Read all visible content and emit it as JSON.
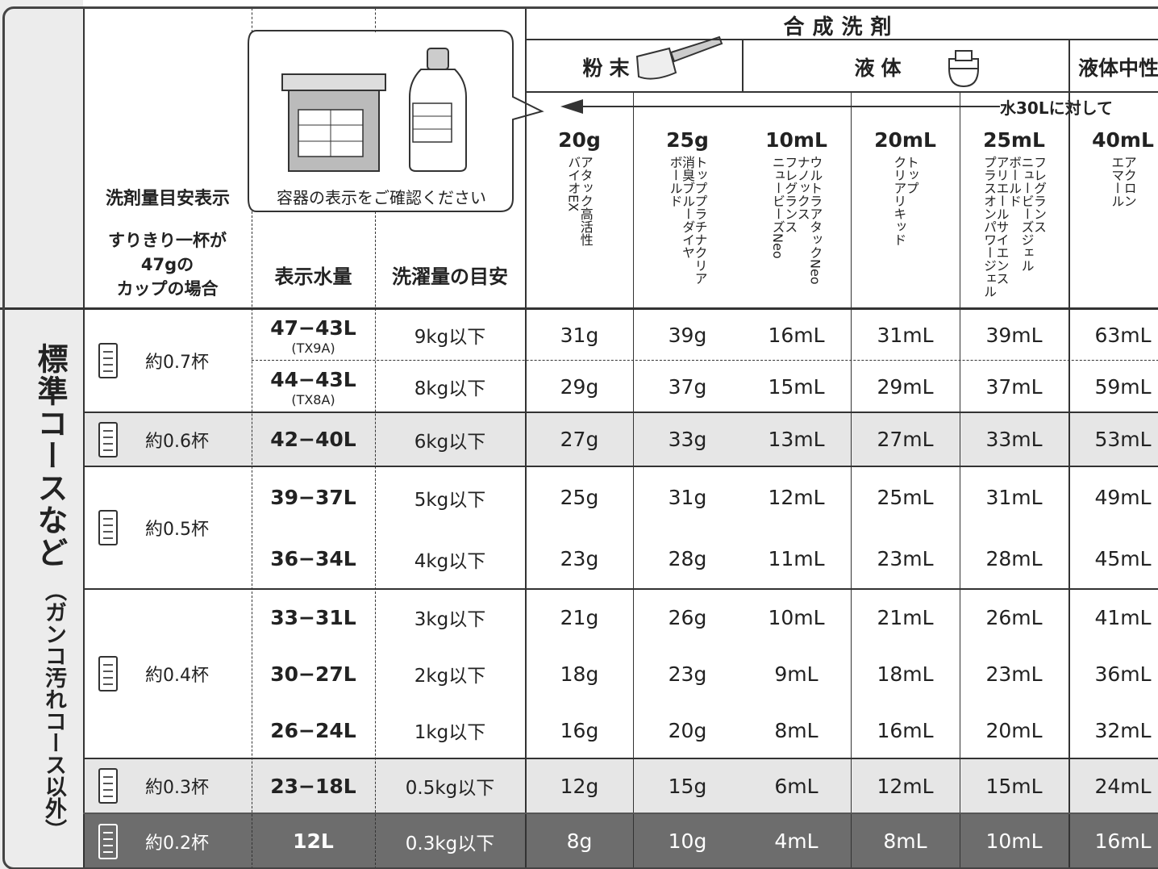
{
  "side": {
    "title": "標準コースなど",
    "sub": "（ガンコ汚れコース以外）"
  },
  "header": {
    "indicator": "洗剤量目安表示",
    "cup_note": [
      "すりきり一杯が",
      "47gの",
      "カップの場合"
    ],
    "container_note": "容器の表示をご確認ください",
    "water": "表示水量",
    "load": "洗濯量の目安",
    "detergent": "合成洗剤",
    "note": "水30Lに対して"
  },
  "groups": [
    "粉末",
    "液体",
    "液体中性"
  ],
  "columns": [
    {
      "amount": "20g",
      "products": [
        "アタック高活性",
        "バイオEX"
      ]
    },
    {
      "amount": "25g",
      "products": [
        "トッププラチナクリア",
        "消臭ブルーダイヤ",
        "ボールド"
      ]
    },
    {
      "amount": "10mL",
      "products": [
        "ウルトラアタックNeo",
        "ナノックス",
        "フレグランス",
        "ニュービーズNeo"
      ]
    },
    {
      "amount": "20mL",
      "products": [
        "トップ",
        "クリアリキッド"
      ]
    },
    {
      "amount": "25mL",
      "products": [
        "フレグランス",
        "ニュービーズジェル",
        "ボールド",
        "アリエールサイエンス",
        "プラスオンパワージェル"
      ]
    },
    {
      "amount": "40mL",
      "products": [
        "アクロン",
        "エマール"
      ]
    }
  ],
  "rows": [
    {
      "cup": "約0.7杯",
      "water": "47−43L",
      "model": "(TX9A)",
      "load": "9kg以下",
      "amounts": [
        "31g",
        "39g",
        "16mL",
        "31mL",
        "39mL",
        "63mL"
      ]
    },
    {
      "water": "44−43L",
      "model": "(TX8A)",
      "load": "8kg以下",
      "amounts": [
        "29g",
        "37g",
        "15mL",
        "29mL",
        "37mL",
        "59mL"
      ]
    },
    {
      "cup": "約0.6杯",
      "water": "42−40L",
      "load": "6kg以下",
      "amounts": [
        "27g",
        "33g",
        "13mL",
        "27mL",
        "33mL",
        "53mL"
      ]
    },
    {
      "cup": "約0.5杯",
      "water": "39−37L",
      "load": "5kg以下",
      "amounts": [
        "25g",
        "31g",
        "12mL",
        "25mL",
        "31mL",
        "49mL"
      ]
    },
    {
      "water": "36−34L",
      "load": "4kg以下",
      "amounts": [
        "23g",
        "28g",
        "11mL",
        "23mL",
        "28mL",
        "45mL"
      ]
    },
    {
      "cup": "約0.4杯",
      "water": "33−31L",
      "load": "3kg以下",
      "amounts": [
        "21g",
        "26g",
        "10mL",
        "21mL",
        "26mL",
        "41mL"
      ]
    },
    {
      "water": "30−27L",
      "load": "2kg以下",
      "amounts": [
        "18g",
        "23g",
        "9mL",
        "18mL",
        "23mL",
        "36mL"
      ]
    },
    {
      "water": "26−24L",
      "load": "1kg以下",
      "amounts": [
        "16g",
        "20g",
        "8mL",
        "16mL",
        "20mL",
        "32mL"
      ]
    },
    {
      "cup": "約0.3杯",
      "water": "23−18L",
      "load": "0.5kg以下",
      "amounts": [
        "12g",
        "15g",
        "6mL",
        "12mL",
        "15mL",
        "24mL"
      ]
    },
    {
      "cup": "約0.2杯",
      "water": "12L",
      "load": "0.3kg以下",
      "amounts": [
        "8g",
        "10g",
        "4mL",
        "8mL",
        "10mL",
        "16mL"
      ]
    }
  ]
}
